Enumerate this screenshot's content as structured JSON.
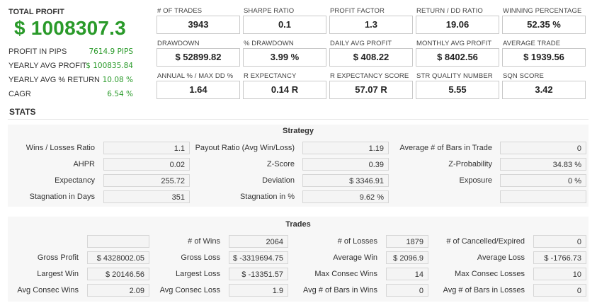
{
  "summary": {
    "total_profit_label": "TOTAL PROFIT",
    "total_profit_value": "$ 1008307.3",
    "rows": [
      {
        "label": "PROFIT IN PIPS",
        "value": "7614.9 PIPS"
      },
      {
        "label": "YEARLY AVG PROFIT",
        "value": "$ 100835.84"
      },
      {
        "label": "YEARLY AVG % RETURN",
        "value": "10.08 %"
      },
      {
        "label": "CAGR",
        "value": "6.54 %"
      }
    ]
  },
  "metrics": [
    {
      "label": "# OF TRADES",
      "value": "3943"
    },
    {
      "label": "SHARPE RATIO",
      "value": "0.1"
    },
    {
      "label": "PROFIT FACTOR",
      "value": "1.3"
    },
    {
      "label": "RETURN / DD RATIO",
      "value": "19.06"
    },
    {
      "label": "WINNING PERCENTAGE",
      "value": "52.35 %"
    },
    {
      "label": "DRAWDOWN",
      "value": "$ 52899.82"
    },
    {
      "label": "% DRAWDOWN",
      "value": "3.99 %"
    },
    {
      "label": "DAILY AVG PROFIT",
      "value": "$ 408.22"
    },
    {
      "label": "MONTHLY AVG PROFIT",
      "value": "$ 8402.56"
    },
    {
      "label": "AVERAGE TRADE",
      "value": "$ 1939.56"
    },
    {
      "label": "ANNUAL % / MAX DD %",
      "value": "1.64"
    },
    {
      "label": "R EXPECTANCY",
      "value": "0.14 R"
    },
    {
      "label": "R EXPECTANCY SCORE",
      "value": "57.07 R"
    },
    {
      "label": "STR QUALITY NUMBER",
      "value": "5.55"
    },
    {
      "label": "SQN SCORE",
      "value": "3.42"
    }
  ],
  "stats_title": "STATS",
  "strategy": {
    "title": "Strategy",
    "rows": [
      [
        {
          "label": "Wins / Losses Ratio",
          "value": "1.1"
        },
        {
          "label": "Payout Ratio (Avg Win/Loss)",
          "value": "1.19"
        },
        {
          "label": "Average # of Bars in Trade",
          "value": "0"
        }
      ],
      [
        {
          "label": "AHPR",
          "value": "0.02"
        },
        {
          "label": "Z-Score",
          "value": "0.39"
        },
        {
          "label": "Z-Probability",
          "value": "34.83 %"
        }
      ],
      [
        {
          "label": "Expectancy",
          "value": "255.72"
        },
        {
          "label": "Deviation",
          "value": "$ 3346.91"
        },
        {
          "label": "Exposure",
          "value": "0 %"
        }
      ],
      [
        {
          "label": "Stagnation in Days",
          "value": "351"
        },
        {
          "label": "Stagnation in %",
          "value": "9.62 %"
        },
        {
          "label": "",
          "value": ""
        }
      ]
    ]
  },
  "trades": {
    "title": "Trades",
    "rows": [
      [
        {
          "label": "",
          "value": ""
        },
        {
          "label": "# of Wins",
          "value": "2064"
        },
        {
          "label": "# of Losses",
          "value": "1879"
        },
        {
          "label": "# of Cancelled/Expired",
          "value": "0"
        }
      ],
      [
        {
          "label": "Gross Profit",
          "value": "$ 4328002.05"
        },
        {
          "label": "Gross Loss",
          "value": "$ -3319694.75"
        },
        {
          "label": "Average Win",
          "value": "$ 2096.9"
        },
        {
          "label": "Average Loss",
          "value": "$ -1766.73"
        }
      ],
      [
        {
          "label": "Largest Win",
          "value": "$ 20146.56"
        },
        {
          "label": "Largest Loss",
          "value": "$ -13351.57"
        },
        {
          "label": "Max Consec Wins",
          "value": "14"
        },
        {
          "label": "Max Consec Losses",
          "value": "10"
        }
      ],
      [
        {
          "label": "Avg Consec Wins",
          "value": "2.09"
        },
        {
          "label": "Avg Consec Loss",
          "value": "1.9"
        },
        {
          "label": "Avg # of Bars in Wins",
          "value": "0"
        },
        {
          "label": "Avg # of Bars in Losses",
          "value": "0"
        }
      ]
    ]
  }
}
